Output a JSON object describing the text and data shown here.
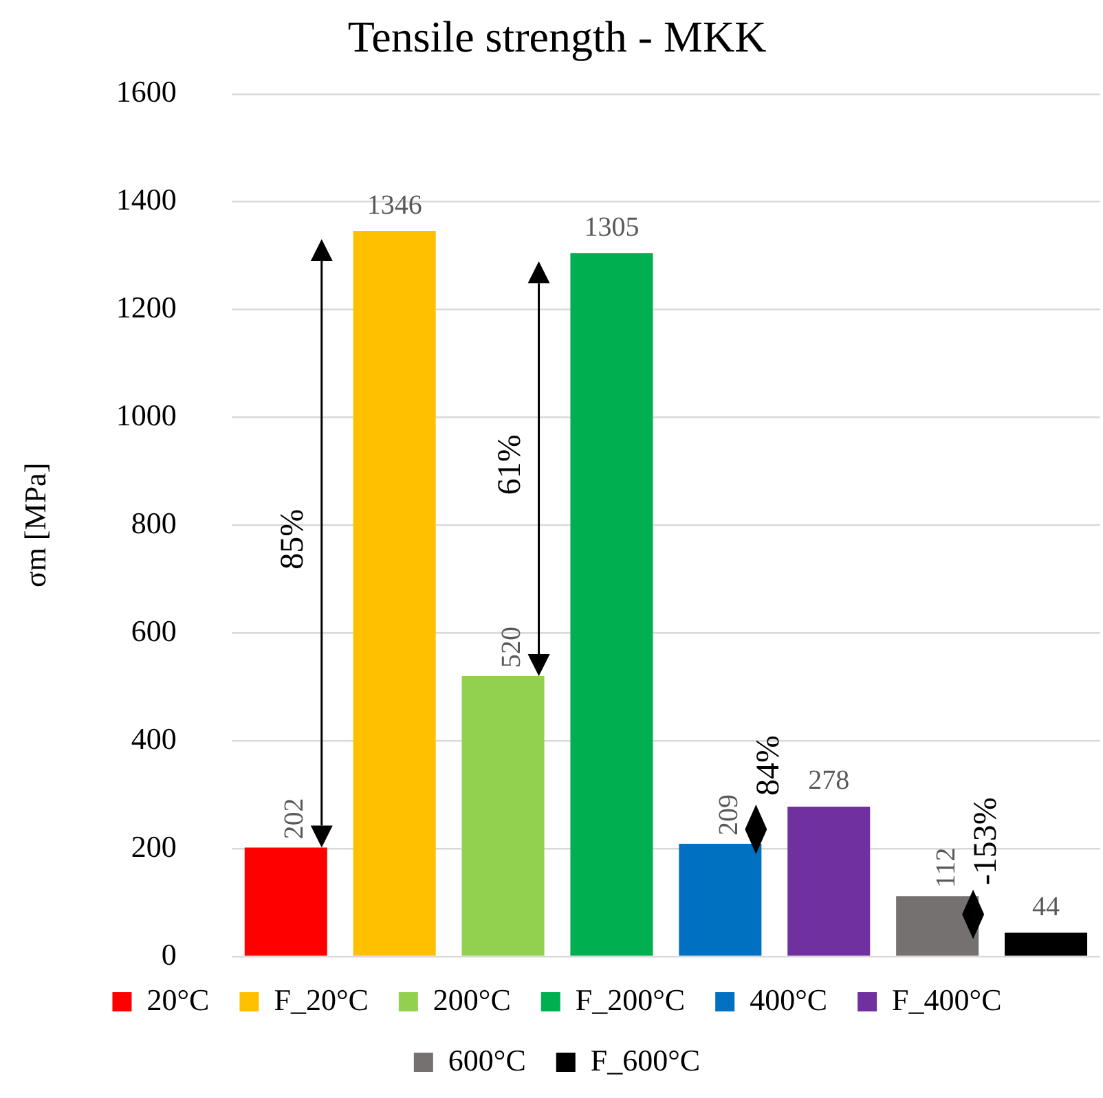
{
  "chart_data": {
    "type": "bar",
    "title": "Tensile strength - MKK",
    "ylabel": "σm [MPa]",
    "categories": [
      null,
      null,
      null,
      null,
      null,
      null,
      null,
      null
    ],
    "series": [
      {
        "name": "20°C",
        "color": "#ff0000",
        "values": [
          202,
          null,
          null,
          null,
          null,
          null,
          null,
          null
        ]
      },
      {
        "name": "F_20°C",
        "color": "#ffc000",
        "values": [
          null,
          1346,
          null,
          null,
          null,
          null,
          null,
          null
        ]
      },
      {
        "name": "200°C",
        "color": "#92d050",
        "values": [
          null,
          null,
          520,
          null,
          null,
          null,
          null,
          null
        ]
      },
      {
        "name": "F_200°C",
        "color": "#00b050",
        "values": [
          null,
          null,
          null,
          1305,
          null,
          null,
          null,
          null
        ]
      },
      {
        "name": "400°C",
        "color": "#0070c0",
        "values": [
          null,
          null,
          null,
          null,
          209,
          null,
          null,
          null
        ]
      },
      {
        "name": "F_400°C",
        "color": "#7030a0",
        "values": [
          null,
          null,
          null,
          null,
          null,
          278,
          null,
          null
        ]
      },
      {
        "name": "600°C",
        "color": "#767171",
        "values": [
          null,
          null,
          null,
          null,
          null,
          null,
          112,
          null
        ]
      },
      {
        "name": "F_600°C",
        "color": "#000000",
        "values": [
          null,
          null,
          null,
          null,
          null,
          null,
          null,
          44
        ]
      }
    ],
    "ylim": [
      0,
      1600
    ],
    "yticks": [
      0,
      200,
      400,
      600,
      800,
      1000,
      1200,
      1400,
      1600
    ],
    "grid": "y",
    "legend": "bottom",
    "tick_labels": "y",
    "data_labels": true,
    "annotations": [
      "85%",
      "61%",
      "84%",
      "-153%"
    ]
  }
}
